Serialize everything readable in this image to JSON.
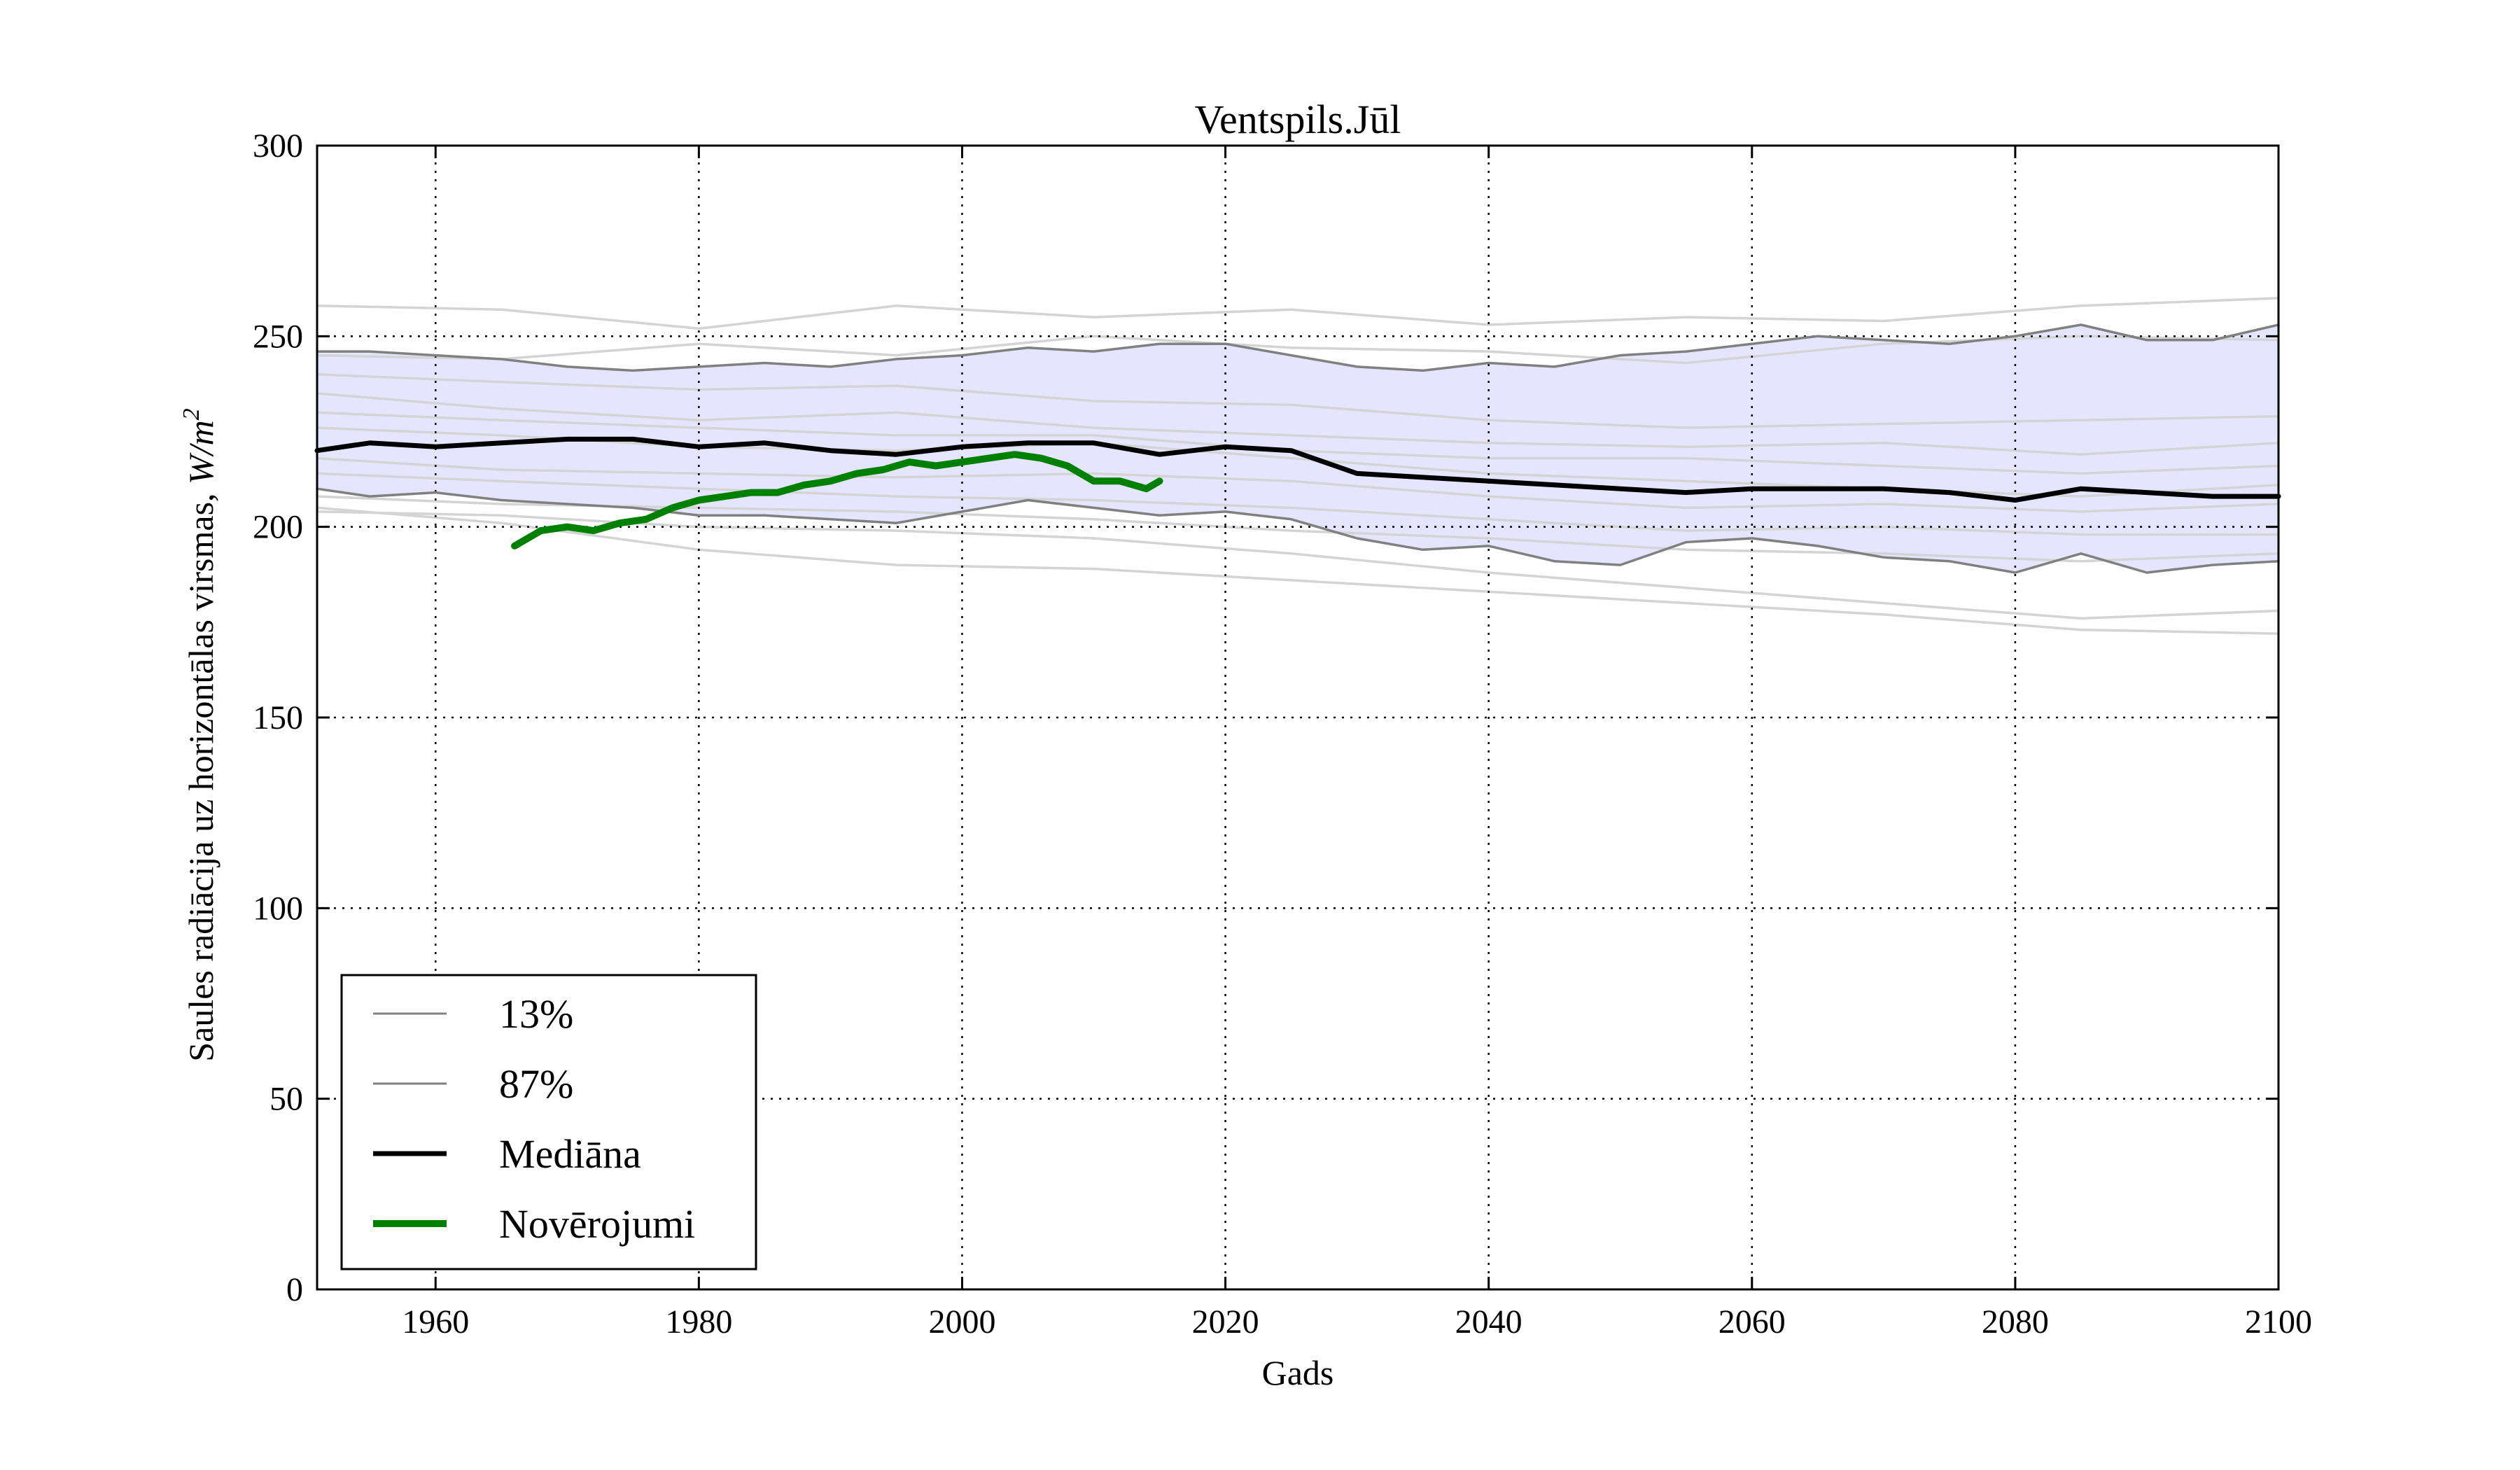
{
  "chart_data": {
    "type": "line",
    "title": "Ventspils.Jūl",
    "xlabel": "Gads",
    "ylabel": "Saules radiācija uz horizontālas virsmas, W/m²",
    "ylabel_text": "Saules radiācija uz horizontālas virsmas, ",
    "ylabel_unit": "W/m",
    "ylabel_unit_exp": "2",
    "xlim": [
      1951,
      2100
    ],
    "ylim": [
      0,
      300
    ],
    "x_ticks": [
      1960,
      1980,
      2000,
      2020,
      2040,
      2060,
      2080,
      2100
    ],
    "y_ticks": [
      0,
      50,
      100,
      150,
      200,
      250,
      300
    ],
    "grid": true,
    "legend_position": "lower-left",
    "band_color": "#e5e5ff",
    "ensemble_color": "#d4d4d4",
    "legend": [
      {
        "label": "13%",
        "color": "#808080",
        "width": 3
      },
      {
        "label": "87%",
        "color": "#808080",
        "width": 3
      },
      {
        "label": "Mediāna",
        "color": "#000000",
        "width": 7
      },
      {
        "label": "Novērojumi",
        "color": "#008000",
        "width": 10
      }
    ],
    "series": [
      {
        "name": "13%",
        "color": "#808080",
        "width": 3.5,
        "x": [
          1951,
          1955,
          1960,
          1965,
          1970,
          1975,
          1980,
          1985,
          1990,
          1995,
          2000,
          2005,
          2010,
          2015,
          2020,
          2025,
          2030,
          2035,
          2040,
          2045,
          2050,
          2055,
          2060,
          2065,
          2070,
          2075,
          2080,
          2085,
          2090,
          2095,
          2100
        ],
        "y": [
          210,
          208,
          209,
          207,
          206,
          205,
          203,
          203,
          202,
          201,
          204,
          207,
          205,
          203,
          204,
          202,
          197,
          194,
          195,
          191,
          190,
          196,
          197,
          195,
          192,
          191,
          188,
          193,
          188,
          190,
          191
        ]
      },
      {
        "name": "87%",
        "color": "#808080",
        "width": 3.5,
        "x": [
          1951,
          1955,
          1960,
          1965,
          1970,
          1975,
          1980,
          1985,
          1990,
          1995,
          2000,
          2005,
          2010,
          2015,
          2020,
          2025,
          2030,
          2035,
          2040,
          2045,
          2050,
          2055,
          2060,
          2065,
          2070,
          2075,
          2080,
          2085,
          2090,
          2095,
          2100
        ],
        "y": [
          246,
          246,
          245,
          244,
          242,
          241,
          242,
          243,
          242,
          244,
          245,
          247,
          246,
          248,
          248,
          245,
          242,
          241,
          243,
          242,
          245,
          246,
          248,
          250,
          249,
          248,
          250,
          253,
          249,
          249,
          253
        ]
      },
      {
        "name": "Mediāna",
        "color": "#000000",
        "width": 7,
        "x": [
          1951,
          1955,
          1960,
          1965,
          1970,
          1975,
          1980,
          1985,
          1990,
          1995,
          2000,
          2005,
          2010,
          2015,
          2020,
          2025,
          2030,
          2035,
          2040,
          2045,
          2050,
          2055,
          2060,
          2065,
          2070,
          2075,
          2080,
          2085,
          2090,
          2095,
          2100
        ],
        "y": [
          220,
          222,
          221,
          222,
          223,
          223,
          221,
          222,
          220,
          219,
          221,
          222,
          222,
          219,
          221,
          220,
          214,
          213,
          212,
          211,
          210,
          209,
          210,
          210,
          210,
          209,
          207,
          210,
          209,
          208,
          208
        ]
      },
      {
        "name": "Novērojumi",
        "color": "#008000",
        "width": 10,
        "x": [
          1966,
          1968,
          1970,
          1972,
          1974,
          1976,
          1978,
          1980,
          1982,
          1984,
          1986,
          1988,
          1990,
          1992,
          1994,
          1996,
          1998,
          2000,
          2002,
          2004,
          2006,
          2008,
          2010,
          2012,
          2014,
          2015
        ],
        "y": [
          195,
          199,
          200,
          199,
          201,
          202,
          205,
          207,
          208,
          209,
          209,
          211,
          212,
          214,
          215,
          217,
          216,
          217,
          218,
          219,
          218,
          216,
          212,
          212,
          210,
          212
        ]
      }
    ],
    "ensemble": [
      {
        "x": [
          1951,
          1965,
          1980,
          1995,
          2010,
          2025,
          2040,
          2055,
          2070,
          2085,
          2100
        ],
        "y": [
          258,
          257,
          252,
          258,
          255,
          257,
          253,
          255,
          254,
          258,
          260
        ]
      },
      {
        "x": [
          1951,
          1965,
          1980,
          1995,
          2010,
          2025,
          2040,
          2055,
          2070,
          2085,
          2100
        ],
        "y": [
          245,
          244,
          248,
          245,
          250,
          247,
          246,
          243,
          248,
          250,
          249
        ]
      },
      {
        "x": [
          1951,
          1965,
          1980,
          1995,
          2010,
          2025,
          2040,
          2055,
          2070,
          2085,
          2100
        ],
        "y": [
          240,
          238,
          236,
          237,
          233,
          232,
          228,
          226,
          227,
          228,
          229
        ]
      },
      {
        "x": [
          1951,
          1965,
          1980,
          1995,
          2010,
          2025,
          2040,
          2055,
          2070,
          2085,
          2100
        ],
        "y": [
          235,
          231,
          228,
          230,
          226,
          224,
          222,
          221,
          222,
          219,
          222
        ]
      },
      {
        "x": [
          1951,
          1965,
          1980,
          1995,
          2010,
          2025,
          2040,
          2055,
          2070,
          2085,
          2100
        ],
        "y": [
          230,
          228,
          226,
          224,
          224,
          220,
          218,
          218,
          216,
          214,
          216
        ]
      },
      {
        "x": [
          1951,
          1965,
          1980,
          1995,
          2010,
          2025,
          2040,
          2055,
          2070,
          2085,
          2100
        ],
        "y": [
          226,
          224,
          221,
          220,
          222,
          218,
          214,
          212,
          210,
          208,
          211
        ]
      },
      {
        "x": [
          1951,
          1965,
          1980,
          1995,
          2010,
          2025,
          2040,
          2055,
          2070,
          2085,
          2100
        ],
        "y": [
          218,
          215,
          214,
          213,
          214,
          212,
          208,
          205,
          206,
          204,
          206
        ]
      },
      {
        "x": [
          1951,
          1965,
          1980,
          1995,
          2010,
          2025,
          2040,
          2055,
          2070,
          2085,
          2100
        ],
        "y": [
          214,
          212,
          210,
          208,
          207,
          205,
          202,
          199,
          200,
          198,
          198
        ]
      },
      {
        "x": [
          1951,
          1965,
          1980,
          1995,
          2010,
          2025,
          2040,
          2055,
          2070,
          2085,
          2100
        ],
        "y": [
          208,
          206,
          205,
          204,
          202,
          199,
          197,
          194,
          193,
          191,
          193
        ]
      },
      {
        "x": [
          1951,
          1965,
          1980,
          1995,
          2010,
          2025,
          2040,
          2055,
          2070,
          2085,
          2100
        ],
        "y": [
          205,
          201,
          194,
          190,
          189,
          186,
          183,
          180,
          177,
          173,
          172
        ]
      },
      {
        "x": [
          1951,
          1965,
          1980,
          1995,
          2010,
          2025,
          2040,
          2055,
          2070,
          2085,
          2100
        ],
        "y": [
          204,
          203,
          200,
          199,
          197,
          193,
          188,
          184,
          180,
          176,
          178
        ]
      }
    ]
  }
}
